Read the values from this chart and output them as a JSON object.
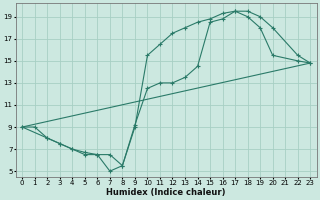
{
  "xlabel": "Humidex (Indice chaleur)",
  "bg_color": "#cce8e0",
  "grid_color": "#a8cfc4",
  "line_color": "#2a7a68",
  "xlim": [
    -0.5,
    23.5
  ],
  "ylim": [
    4.5,
    20.2
  ],
  "xticks": [
    0,
    1,
    2,
    3,
    4,
    5,
    6,
    7,
    8,
    9,
    10,
    11,
    12,
    13,
    14,
    15,
    16,
    17,
    18,
    19,
    20,
    21,
    22,
    23
  ],
  "yticks": [
    5,
    7,
    9,
    11,
    13,
    15,
    17,
    19
  ],
  "line1_x": [
    0,
    1,
    2,
    3,
    4,
    5,
    6,
    7,
    8,
    9,
    10,
    11,
    12,
    13,
    14,
    15,
    16,
    17,
    18,
    19,
    20,
    22,
    23
  ],
  "line1_y": [
    9,
    9,
    8,
    7.5,
    7,
    6.5,
    6.5,
    5,
    5.5,
    9,
    15.5,
    16.5,
    17.5,
    18,
    18.5,
    18.8,
    19.3,
    19.5,
    19,
    18,
    15.5,
    15,
    14.8
  ],
  "line2_x": [
    0,
    2,
    3,
    4,
    5,
    6,
    7,
    8,
    9,
    10,
    11,
    12,
    13,
    14,
    15,
    16,
    17,
    18,
    19,
    20,
    22,
    23
  ],
  "line2_y": [
    9,
    8,
    7.5,
    7,
    6.7,
    6.5,
    6.5,
    5.5,
    9.2,
    12.5,
    13,
    13,
    13.5,
    14.5,
    18.5,
    18.8,
    19.5,
    19.5,
    19,
    18,
    15.5,
    14.8
  ],
  "line3_x": [
    0,
    23
  ],
  "line3_y": [
    9,
    14.8
  ]
}
